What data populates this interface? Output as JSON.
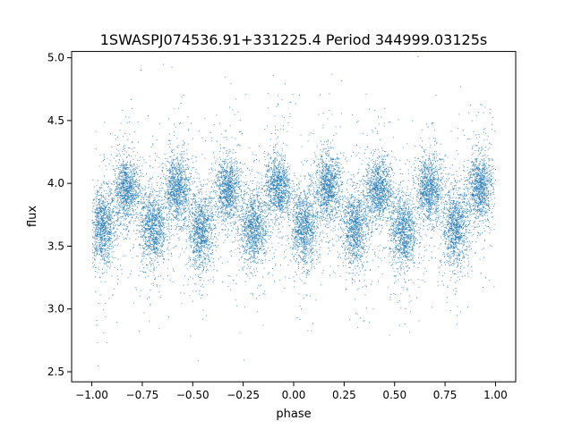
{
  "chart_data": {
    "type": "scatter",
    "title": "1SWASPJ074536.91+331225.4 Period 344999.03125s",
    "xlabel": "phase",
    "ylabel": "flux",
    "xlim": [
      -1.1,
      1.1
    ],
    "ylim": [
      2.42,
      5.05
    ],
    "x_ticks": [
      -1.0,
      -0.75,
      -0.5,
      -0.25,
      0.0,
      0.25,
      0.5,
      0.75,
      1.0
    ],
    "x_tick_labels": [
      "−1.00",
      "−0.75",
      "−0.50",
      "−0.25",
      "0.00",
      "0.25",
      "0.50",
      "0.75",
      "1.00"
    ],
    "y_ticks": [
      2.5,
      3.0,
      3.5,
      4.0,
      4.5,
      5.0
    ],
    "y_tick_labels": [
      "2.5",
      "3.0",
      "3.5",
      "4.0",
      "4.5",
      "5.0"
    ],
    "marker_color": "#1f77b4",
    "grid": false,
    "legend": "none",
    "series": [
      {
        "cluster_centers": [
          {
            "x": -0.95,
            "y": 3.65
          },
          {
            "x": -0.83,
            "y": 3.95
          },
          {
            "x": -0.7,
            "y": 3.65
          },
          {
            "x": -0.58,
            "y": 3.95
          },
          {
            "x": -0.46,
            "y": 3.62
          },
          {
            "x": -0.33,
            "y": 3.95
          },
          {
            "x": -0.2,
            "y": 3.65
          },
          {
            "x": -0.08,
            "y": 3.97
          },
          {
            "x": 0.05,
            "y": 3.65
          },
          {
            "x": 0.17,
            "y": 3.97
          },
          {
            "x": 0.3,
            "y": 3.65
          },
          {
            "x": 0.42,
            "y": 3.95
          },
          {
            "x": 0.54,
            "y": 3.62
          },
          {
            "x": 0.67,
            "y": 3.95
          },
          {
            "x": 0.8,
            "y": 3.65
          },
          {
            "x": 0.92,
            "y": 3.97
          }
        ]
      }
    ]
  }
}
